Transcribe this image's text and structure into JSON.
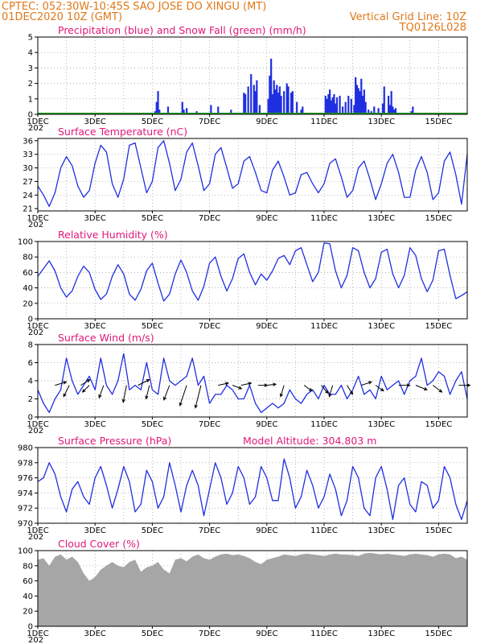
{
  "header": {
    "line1": "CPTEC:  052:30W-10:45S  SAO JOSE DO XINGU (MT)",
    "line2_left": "01DEC2020 10Z (GMT)",
    "line2_right": "Vertical Grid Line: 10Z",
    "line3_right": "TQ0126L028"
  },
  "x_axis": {
    "day_range": [
      1,
      16
    ],
    "tick_labels": [
      "1DEC",
      "3DEC",
      "5DEC",
      "7DEC",
      "9DEC",
      "11DEC",
      "13DEC",
      "15DEC"
    ],
    "tick_days": [
      1,
      3,
      5,
      7,
      9,
      11,
      13,
      15
    ],
    "partial_label": "202"
  },
  "colors": {
    "header": "#e07818",
    "panel_title": "#e0187a",
    "line": "#1f2fe0",
    "precip": "#1f2fe0",
    "snow": "#1f9e1f",
    "cloud": "#a6a6a6",
    "grid": "#9a9a9a"
  },
  "chart_data": [
    {
      "type": "bar",
      "title": "Precipitation (blue) and Snow Fall (green) (mm/h)",
      "ylim": [
        0,
        5
      ],
      "yticks": [
        0,
        1,
        2,
        3,
        4,
        5
      ],
      "series": [
        {
          "name": "Precipitation (blue)",
          "x": [
            5.1,
            5.15,
            5.2,
            5.25,
            5.55,
            6.05,
            6.1,
            6.2,
            6.4,
            6.55,
            7.05,
            7.3,
            7.75,
            8.2,
            8.25,
            8.35,
            8.45,
            8.55,
            8.6,
            8.65,
            8.75,
            9.05,
            9.1,
            9.15,
            9.2,
            9.25,
            9.3,
            9.35,
            9.4,
            9.45,
            9.5,
            9.6,
            9.7,
            9.75,
            9.85,
            9.9,
            10.05,
            10.2,
            10.25,
            10.35,
            11.05,
            11.1,
            11.15,
            11.2,
            11.25,
            11.3,
            11.35,
            11.4,
            11.45,
            11.55,
            11.65,
            11.75,
            11.85,
            11.95,
            12.05,
            12.1,
            12.15,
            12.2,
            12.25,
            12.3,
            12.35,
            12.4,
            12.45,
            12.55,
            12.65,
            12.75,
            12.9,
            13.05,
            13.1,
            13.25,
            13.3,
            13.35,
            13.4,
            13.45,
            13.5,
            14.05,
            14.1
          ],
          "values": [
            0.2,
            0.8,
            1.5,
            0.3,
            0.5,
            0.8,
            0.3,
            0.4,
            0.1,
            0.2,
            0.6,
            0.5,
            0.3,
            1.4,
            1.3,
            1.8,
            2.6,
            1.9,
            1.5,
            2.2,
            0.6,
            1.0,
            2.5,
            3.6,
            1.3,
            2.2,
            1.6,
            1.9,
            1.4,
            1.8,
            1.2,
            1.5,
            2.0,
            1.8,
            1.4,
            1.5,
            0.8,
            0.3,
            0.5,
            0.1,
            1.2,
            1.0,
            1.3,
            1.6,
            0.9,
            1.1,
            1.3,
            0.7,
            1.1,
            1.2,
            0.5,
            0.8,
            1.2,
            1.0,
            0.6,
            2.4,
            1.9,
            1.7,
            1.5,
            2.3,
            1.2,
            1.6,
            0.8,
            0.3,
            0.2,
            0.5,
            0.4,
            0.7,
            1.8,
            1.2,
            0.6,
            1.5,
            0.5,
            0.3,
            0.4,
            0.2,
            0.5
          ]
        },
        {
          "name": "Snow Fall (green)",
          "x": [
            1,
            16
          ],
          "values": [
            0,
            0
          ]
        }
      ]
    },
    {
      "type": "line",
      "title": "Surface Temperature (nC)",
      "ylim": [
        20.5,
        36.5
      ],
      "yticks": [
        21,
        24,
        27,
        30,
        33,
        36
      ],
      "x": [
        1.0,
        1.2,
        1.4,
        1.6,
        1.8,
        2.0,
        2.2,
        2.4,
        2.6,
        2.8,
        3.0,
        3.2,
        3.4,
        3.6,
        3.8,
        4.0,
        4.2,
        4.4,
        4.6,
        4.8,
        5.0,
        5.2,
        5.4,
        5.6,
        5.8,
        6.0,
        6.2,
        6.4,
        6.6,
        6.8,
        7.0,
        7.2,
        7.4,
        7.6,
        7.8,
        8.0,
        8.2,
        8.4,
        8.6,
        8.8,
        9.0,
        9.2,
        9.4,
        9.6,
        9.8,
        10.0,
        10.2,
        10.4,
        10.6,
        10.8,
        11.0,
        11.2,
        11.4,
        11.6,
        11.8,
        12.0,
        12.2,
        12.4,
        12.6,
        12.8,
        13.0,
        13.2,
        13.4,
        13.6,
        13.8,
        14.0,
        14.2,
        14.4,
        14.6,
        14.8,
        15.0,
        15.2,
        15.4,
        15.6,
        15.8,
        16.0
      ],
      "values": [
        26.0,
        24.0,
        21.5,
        24.5,
        30.0,
        32.5,
        30.5,
        26.0,
        23.5,
        25.0,
        31.0,
        35.0,
        33.5,
        26.5,
        23.5,
        27.5,
        35.0,
        35.5,
        30.0,
        24.5,
        27.0,
        34.5,
        36.0,
        31.0,
        25.0,
        27.5,
        33.5,
        35.5,
        30.5,
        25.0,
        26.5,
        33.0,
        34.5,
        30.0,
        25.5,
        26.5,
        31.5,
        32.5,
        29.0,
        25.0,
        24.5,
        29.5,
        31.5,
        28.0,
        24.0,
        24.5,
        28.5,
        29.0,
        26.5,
        24.5,
        26.5,
        31.0,
        32.0,
        28.0,
        23.5,
        25.0,
        30.0,
        31.5,
        27.5,
        23.0,
        26.5,
        31.0,
        33.0,
        29.0,
        23.5,
        23.5,
        29.5,
        32.5,
        29.0,
        23.0,
        24.5,
        31.5,
        33.5,
        28.5,
        22.0,
        33.0
      ]
    },
    {
      "type": "line",
      "title": "Relative Humidity (%)",
      "ylim": [
        0,
        100
      ],
      "yticks": [
        0,
        20,
        40,
        60,
        80,
        100
      ],
      "x": [
        1.0,
        1.2,
        1.4,
        1.6,
        1.8,
        2.0,
        2.2,
        2.4,
        2.6,
        2.8,
        3.0,
        3.2,
        3.4,
        3.6,
        3.8,
        4.0,
        4.2,
        4.4,
        4.6,
        4.8,
        5.0,
        5.2,
        5.4,
        5.6,
        5.8,
        6.0,
        6.2,
        6.4,
        6.6,
        6.8,
        7.0,
        7.2,
        7.4,
        7.6,
        7.8,
        8.0,
        8.2,
        8.4,
        8.6,
        8.8,
        9.0,
        9.2,
        9.4,
        9.6,
        9.8,
        10.0,
        10.2,
        10.4,
        10.6,
        10.8,
        11.0,
        11.2,
        11.4,
        11.6,
        11.8,
        12.0,
        12.2,
        12.4,
        12.6,
        12.8,
        13.0,
        13.2,
        13.4,
        13.6,
        13.8,
        14.0,
        14.2,
        14.4,
        14.6,
        14.8,
        15.0,
        15.2,
        15.4,
        15.6,
        15.8,
        16.0
      ],
      "values": [
        55.0,
        65.0,
        75.0,
        62.0,
        40.0,
        28.0,
        36.0,
        55.0,
        68.0,
        60.0,
        38.0,
        25.0,
        32.0,
        55.0,
        70.0,
        58.0,
        32.0,
        24.0,
        38.0,
        62.0,
        72.0,
        46.0,
        23.0,
        32.0,
        58.0,
        76.0,
        60.0,
        36.0,
        24.0,
        42.0,
        72.0,
        80.0,
        55.0,
        36.0,
        52.0,
        78.0,
        84.0,
        60.0,
        44.0,
        58.0,
        50.0,
        62.0,
        78.0,
        82.0,
        70.0,
        88.0,
        92.0,
        70.0,
        48.0,
        60.0,
        98.0,
        97.0,
        62.0,
        40.0,
        56.0,
        92.0,
        88.0,
        60.0,
        40.0,
        52.0,
        86.0,
        90.0,
        58.0,
        40.0,
        56.0,
        92.0,
        82.0,
        52.0,
        35.0,
        50.0,
        88.0,
        90.0,
        56.0,
        26.0,
        30.0,
        35.0
      ]
    },
    {
      "type": "line",
      "title": "Surface Wind (m/s)",
      "ylim": [
        0,
        8
      ],
      "yticks": [
        0,
        2,
        4,
        6,
        8
      ],
      "x": [
        1.0,
        1.2,
        1.4,
        1.6,
        1.8,
        2.0,
        2.2,
        2.4,
        2.6,
        2.8,
        3.0,
        3.2,
        3.4,
        3.6,
        3.8,
        4.0,
        4.2,
        4.4,
        4.6,
        4.8,
        5.0,
        5.2,
        5.4,
        5.6,
        5.8,
        6.0,
        6.2,
        6.4,
        6.6,
        6.8,
        7.0,
        7.2,
        7.4,
        7.6,
        7.8,
        8.0,
        8.2,
        8.4,
        8.6,
        8.8,
        9.0,
        9.2,
        9.4,
        9.6,
        9.8,
        10.0,
        10.2,
        10.4,
        10.6,
        10.8,
        11.0,
        11.2,
        11.4,
        11.6,
        11.8,
        12.0,
        12.2,
        12.4,
        12.6,
        12.8,
        13.0,
        13.2,
        13.4,
        13.6,
        13.8,
        14.0,
        14.2,
        14.4,
        14.6,
        14.8,
        15.0,
        15.2,
        15.4,
        15.6,
        15.8,
        16.0
      ],
      "values": [
        3.0,
        1.5,
        0.5,
        2.0,
        3.0,
        6.5,
        4.0,
        2.5,
        3.5,
        4.5,
        3.0,
        6.5,
        3.5,
        2.5,
        4.0,
        7.0,
        3.0,
        3.5,
        3.0,
        6.0,
        3.0,
        2.5,
        6.5,
        4.0,
        3.5,
        4.0,
        4.5,
        6.5,
        3.5,
        4.5,
        1.5,
        2.5,
        2.5,
        3.5,
        3.0,
        2.0,
        2.0,
        3.5,
        1.5,
        0.5,
        1.0,
        1.5,
        1.0,
        1.5,
        3.0,
        2.0,
        1.5,
        2.5,
        3.0,
        2.0,
        3.5,
        2.5,
        2.5,
        3.5,
        2.0,
        3.0,
        4.5,
        2.5,
        3.0,
        2.0,
        4.5,
        3.0,
        3.5,
        4.0,
        2.5,
        4.0,
        4.5,
        6.5,
        3.5,
        4.0,
        5.0,
        4.5,
        2.5,
        4.0,
        5.0,
        2.0
      ],
      "wind_arrows": [
        {
          "day": 1.6,
          "dx": 1.0,
          "dy": 0.3
        },
        {
          "day": 2.1,
          "dx": -0.5,
          "dy": -1.0
        },
        {
          "day": 2.5,
          "dx": 0.8,
          "dy": 0.5
        },
        {
          "day": 2.8,
          "dx": -0.6,
          "dy": -0.6
        },
        {
          "day": 3.3,
          "dx": -0.4,
          "dy": -1.1
        },
        {
          "day": 4.1,
          "dx": -0.3,
          "dy": -1.5
        },
        {
          "day": 4.5,
          "dx": 1.0,
          "dy": 0.5
        },
        {
          "day": 4.9,
          "dx": -0.3,
          "dy": -1.2
        },
        {
          "day": 5.6,
          "dx": -0.5,
          "dy": -1.3
        },
        {
          "day": 6.2,
          "dx": -0.6,
          "dy": -1.8
        },
        {
          "day": 6.7,
          "dx": -0.5,
          "dy": -2.0
        },
        {
          "day": 7.3,
          "dx": 0.9,
          "dy": 0.2
        },
        {
          "day": 7.8,
          "dx": 0.8,
          "dy": -0.3
        },
        {
          "day": 8.1,
          "dx": 0.9,
          "dy": 0.2
        },
        {
          "day": 8.7,
          "dx": 0.8,
          "dy": 0.0
        },
        {
          "day": 9.0,
          "dx": 0.8,
          "dy": 0.1
        },
        {
          "day": 9.6,
          "dx": -0.3,
          "dy": -1.0
        },
        {
          "day": 10.3,
          "dx": 0.7,
          "dy": -0.5
        },
        {
          "day": 10.9,
          "dx": 0.6,
          "dy": -0.7
        },
        {
          "day": 11.3,
          "dx": -0.3,
          "dy": -1.0
        },
        {
          "day": 11.8,
          "dx": 0.5,
          "dy": -0.8
        },
        {
          "day": 12.3,
          "dx": 0.9,
          "dy": 0.3
        },
        {
          "day": 12.8,
          "dx": 0.7,
          "dy": -0.5
        },
        {
          "day": 13.6,
          "dx": 1.0,
          "dy": 0.0
        },
        {
          "day": 14.2,
          "dx": 1.0,
          "dy": -0.4
        },
        {
          "day": 14.8,
          "dx": 0.8,
          "dy": -0.6
        },
        {
          "day": 15.7,
          "dx": 1.0,
          "dy": 0.0
        }
      ]
    },
    {
      "type": "line",
      "title": "Surface Pressure (hPa)",
      "annotation": "Model Altitude: 304.803 m",
      "ylim": [
        970,
        980
      ],
      "yticks": [
        970,
        972,
        974,
        976,
        978,
        980
      ],
      "x": [
        1.0,
        1.2,
        1.4,
        1.6,
        1.8,
        2.0,
        2.2,
        2.4,
        2.6,
        2.8,
        3.0,
        3.2,
        3.4,
        3.6,
        3.8,
        4.0,
        4.2,
        4.4,
        4.6,
        4.8,
        5.0,
        5.2,
        5.4,
        5.6,
        5.8,
        6.0,
        6.2,
        6.4,
        6.6,
        6.8,
        7.0,
        7.2,
        7.4,
        7.6,
        7.8,
        8.0,
        8.2,
        8.4,
        8.6,
        8.8,
        9.0,
        9.2,
        9.4,
        9.6,
        9.8,
        10.0,
        10.2,
        10.4,
        10.6,
        10.8,
        11.0,
        11.2,
        11.4,
        11.6,
        11.8,
        12.0,
        12.2,
        12.4,
        12.6,
        12.8,
        13.0,
        13.2,
        13.4,
        13.6,
        13.8,
        14.0,
        14.2,
        14.4,
        14.6,
        14.8,
        15.0,
        15.2,
        15.4,
        15.6,
        15.8,
        16.0
      ],
      "values": [
        975.5,
        976.0,
        978.0,
        976.5,
        973.5,
        971.5,
        974.5,
        975.5,
        973.5,
        972.5,
        976.0,
        977.5,
        975.0,
        972.0,
        974.5,
        977.5,
        975.5,
        971.5,
        972.5,
        977.0,
        975.5,
        972.0,
        973.5,
        978.0,
        975.0,
        971.5,
        975.0,
        977.0,
        975.0,
        971.0,
        974.5,
        978.0,
        976.0,
        972.5,
        974.0,
        977.5,
        976.0,
        972.5,
        973.5,
        977.5,
        976.0,
        973.0,
        973.0,
        978.5,
        976.0,
        972.0,
        973.5,
        977.0,
        975.0,
        972.0,
        973.5,
        976.5,
        974.5,
        971.0,
        973.0,
        977.5,
        976.0,
        972.0,
        971.0,
        976.0,
        977.5,
        974.5,
        970.5,
        975.0,
        976.0,
        972.5,
        971.5,
        975.5,
        975.0,
        972.0,
        973.0,
        977.5,
        976.0,
        972.5,
        970.5,
        973.0
      ]
    },
    {
      "type": "area",
      "title": "Cloud Cover (%)",
      "ylim": [
        0,
        100
      ],
      "yticks": [
        0,
        20,
        40,
        60,
        80,
        100
      ],
      "x": [
        1.0,
        1.2,
        1.4,
        1.6,
        1.8,
        2.0,
        2.2,
        2.4,
        2.6,
        2.8,
        3.0,
        3.2,
        3.4,
        3.6,
        3.8,
        4.0,
        4.2,
        4.4,
        4.6,
        4.8,
        5.0,
        5.2,
        5.4,
        5.6,
        5.8,
        6.0,
        6.2,
        6.4,
        6.6,
        6.8,
        7.0,
        7.2,
        7.4,
        7.6,
        7.8,
        8.0,
        8.2,
        8.4,
        8.6,
        8.8,
        9.0,
        9.2,
        9.4,
        9.6,
        9.8,
        10.0,
        10.2,
        10.4,
        10.6,
        10.8,
        11.0,
        11.2,
        11.4,
        11.6,
        11.8,
        12.0,
        12.2,
        12.4,
        12.6,
        12.8,
        13.0,
        13.2,
        13.4,
        13.6,
        13.8,
        14.0,
        14.2,
        14.4,
        14.6,
        14.8,
        15.0,
        15.2,
        15.4,
        15.6,
        15.8,
        16.0
      ],
      "values": [
        88,
        90,
        80,
        92,
        95,
        88,
        92,
        85,
        70,
        60,
        65,
        75,
        80,
        85,
        80,
        78,
        85,
        88,
        72,
        78,
        80,
        85,
        75,
        70,
        88,
        90,
        86,
        92,
        95,
        90,
        88,
        92,
        95,
        96,
        94,
        95,
        93,
        90,
        85,
        82,
        88,
        90,
        92,
        95,
        94,
        93,
        95,
        96,
        95,
        94,
        93,
        95,
        96,
        95,
        95,
        94,
        93,
        96,
        97,
        96,
        95,
        96,
        95,
        94,
        93,
        95,
        96,
        95,
        94,
        92,
        95,
        96,
        95,
        90,
        92,
        88
      ]
    }
  ]
}
